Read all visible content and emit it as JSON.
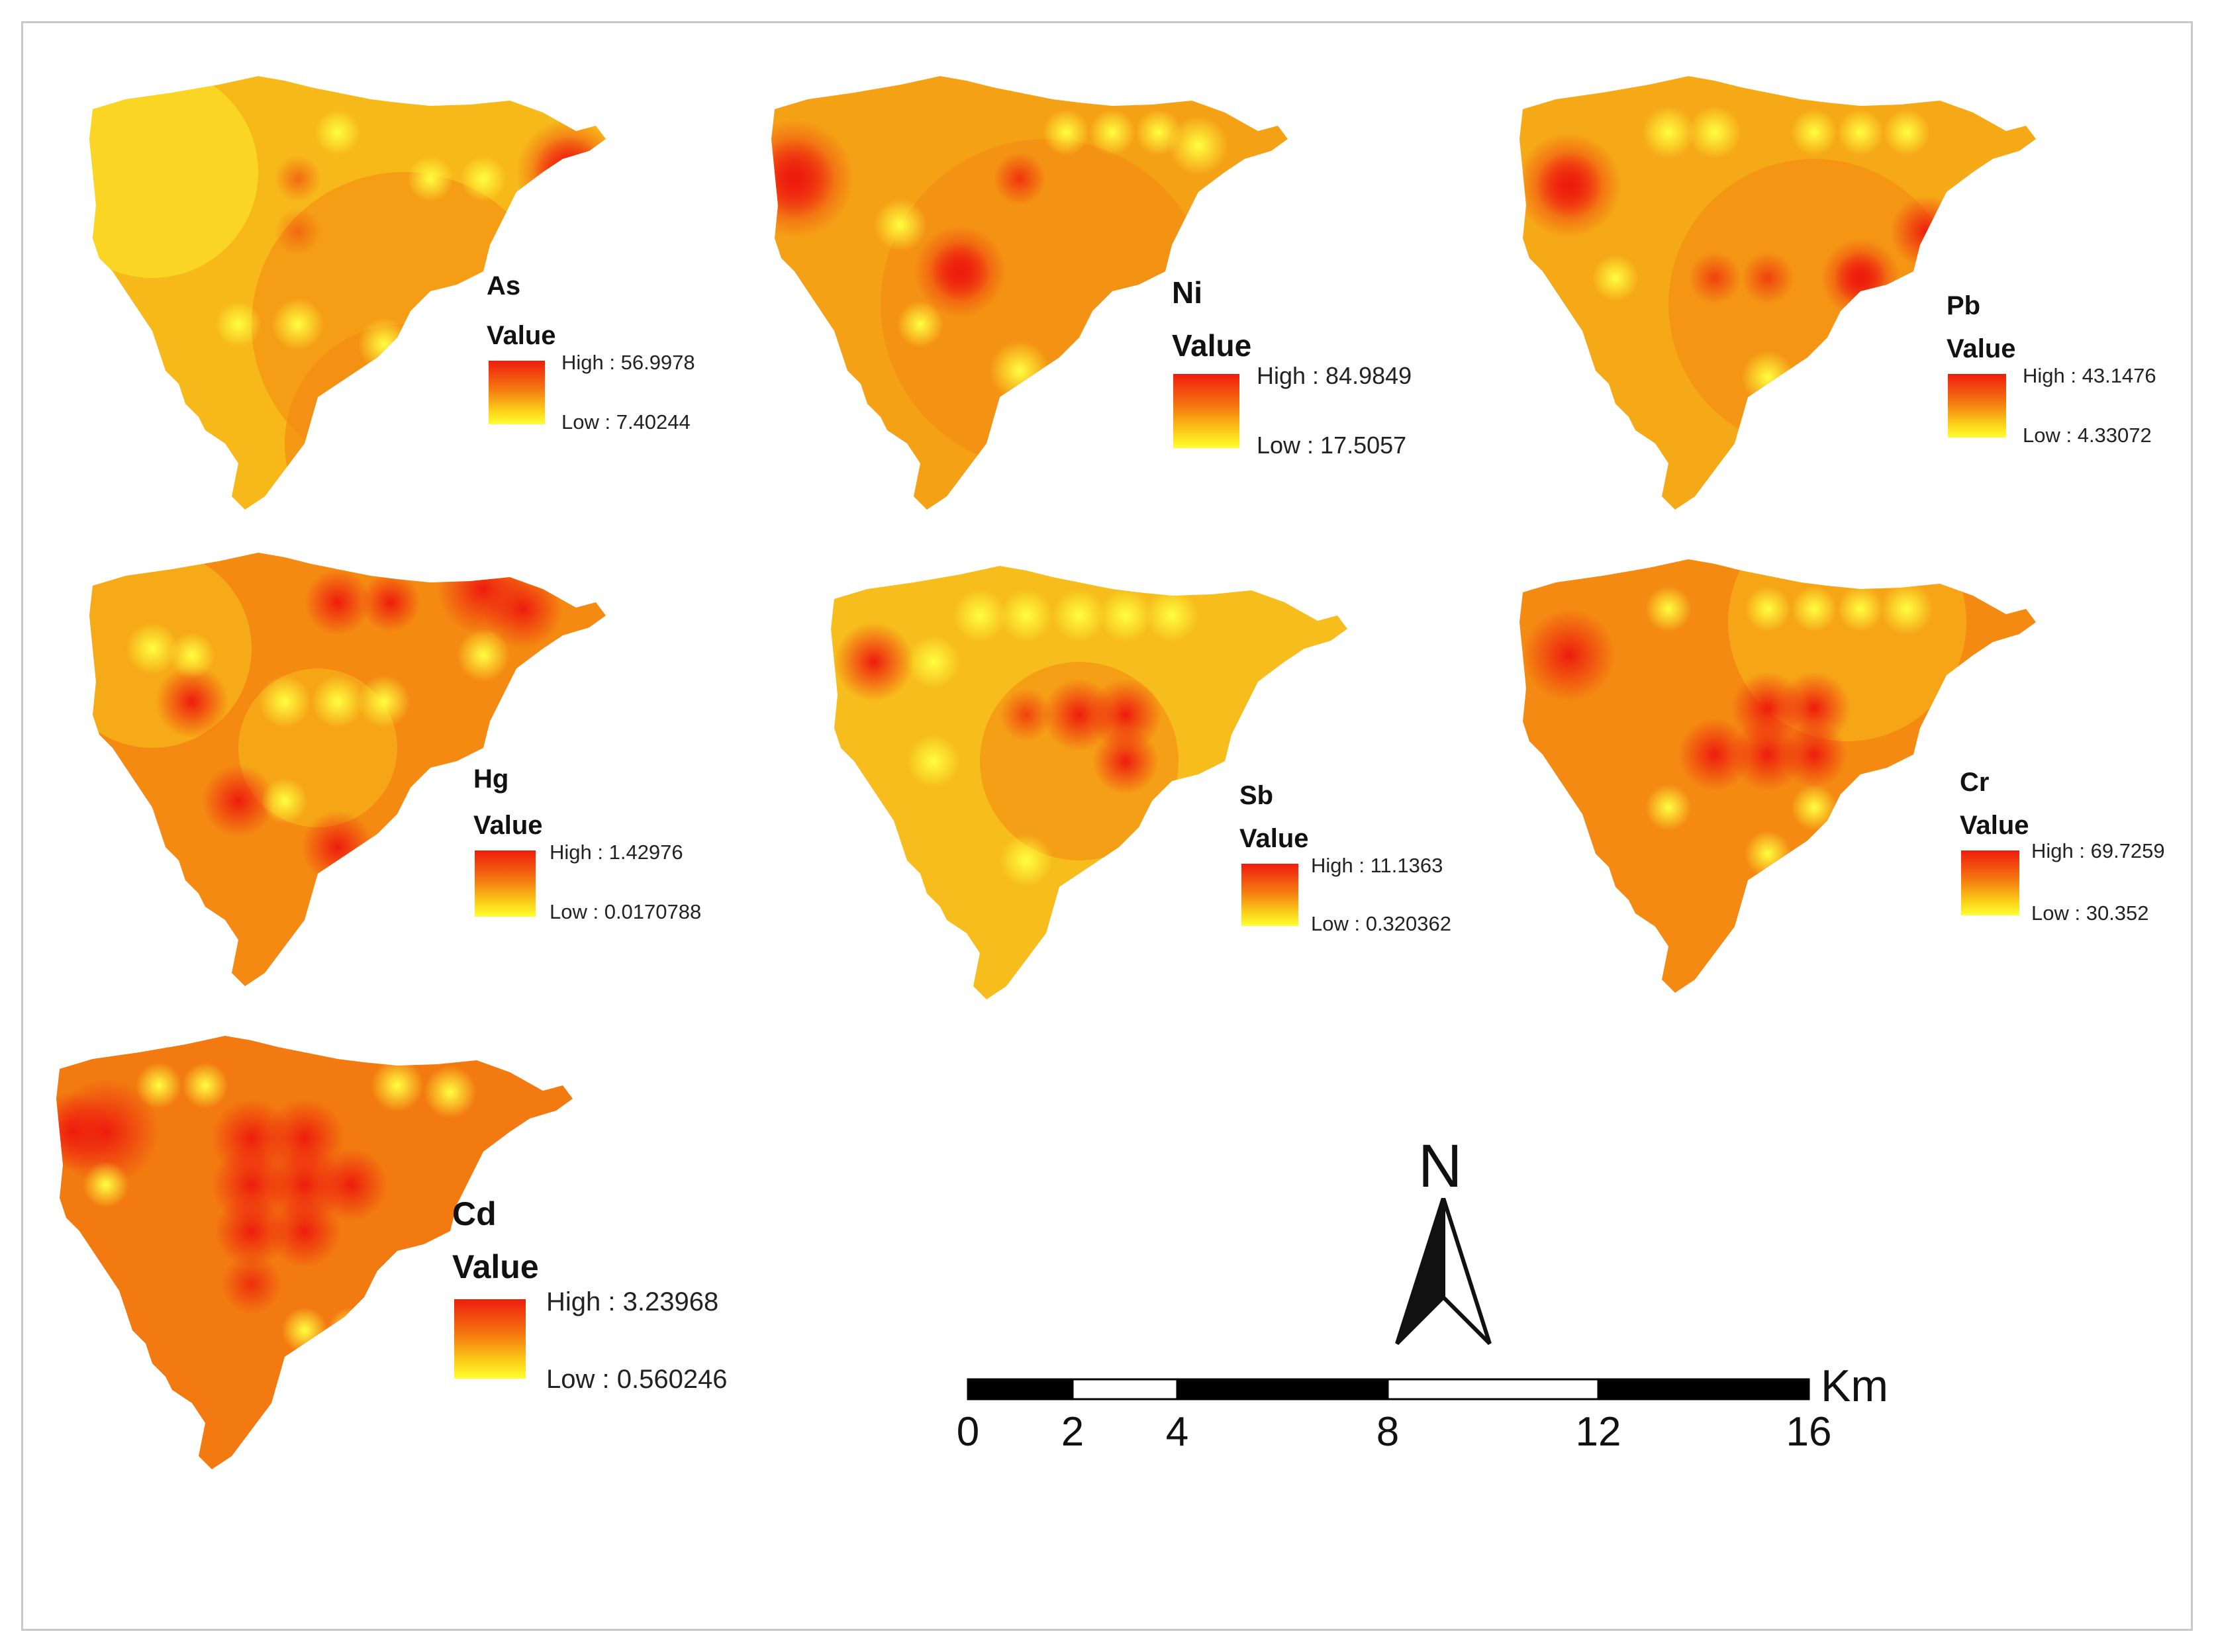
{
  "panels": [
    {
      "element": "As",
      "value_label": "Value",
      "high_label": "High : 56.9978",
      "low_label": "Low : 7.40244",
      "high": 56.9978,
      "low": 7.40244
    },
    {
      "element": "Ni",
      "value_label": "Value",
      "high_label": "High : 84.9849",
      "low_label": "Low : 17.5057",
      "high": 84.9849,
      "low": 17.5057
    },
    {
      "element": "Pb",
      "value_label": "Value",
      "high_label": "High : 43.1476",
      "low_label": "Low : 4.33072",
      "high": 43.1476,
      "low": 4.33072
    },
    {
      "element": "Hg",
      "value_label": "Value",
      "high_label": "High : 1.42976",
      "low_label": "Low : 0.0170788",
      "high": 1.42976,
      "low": 0.0170788
    },
    {
      "element": "Sb",
      "value_label": "Value",
      "high_label": "High : 11.1363",
      "low_label": "Low : 0.320362",
      "high": 11.1363,
      "low": 0.320362
    },
    {
      "element": "Cr",
      "value_label": "Value",
      "high_label": "High : 69.7259",
      "low_label": "Low : 30.352",
      "high": 69.7259,
      "low": 30.352
    },
    {
      "element": "Cd",
      "value_label": "Value",
      "high_label": "High : 3.23968",
      "low_label": "Low : 0.560246",
      "high": 3.23968,
      "low": 0.560246
    }
  ],
  "colors": {
    "high": "#ee1c0e",
    "mid": "#f57a10",
    "low": "#ffff30",
    "frame": "#c8c8c8"
  },
  "north_arrow": {
    "label": "N",
    "icon": "north-arrow-icon"
  },
  "scale_bar": {
    "unit": "Km",
    "ticks": [
      "0",
      "2",
      "4",
      "8",
      "12",
      "16"
    ]
  }
}
